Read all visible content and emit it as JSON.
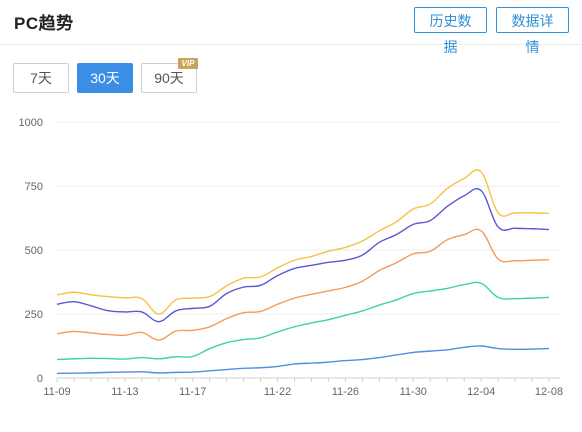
{
  "header": {
    "title": "PC趋势",
    "history_label": "历史数据",
    "detail_label": "数据详情"
  },
  "range_buttons": {
    "d7": "7天",
    "d30": "30天",
    "d90": "90天",
    "vip": "VIP",
    "selected": "30天"
  },
  "colors": {
    "accent": "#3a8ee6",
    "header_button": "#2f8fd8",
    "vip_badge": "#c9a35a"
  },
  "chart_data": {
    "type": "line",
    "x": [
      "11-09",
      "11-10",
      "11-11",
      "11-12",
      "11-13",
      "11-14",
      "11-15",
      "11-16",
      "11-17",
      "11-18",
      "11-19",
      "11-20",
      "11-21",
      "11-22",
      "11-23",
      "11-24",
      "11-25",
      "11-26",
      "11-27",
      "11-28",
      "11-29",
      "11-30",
      "12-01",
      "12-02",
      "12-03",
      "12-04",
      "12-05",
      "12-06",
      "12-07",
      "12-08"
    ],
    "x_tick_labels": [
      "11-09",
      "11-13",
      "11-17",
      "11-22",
      "11-26",
      "11-30",
      "12-04",
      "12-08"
    ],
    "ylim": [
      0,
      1000
    ],
    "y_ticks": [
      0,
      250,
      500,
      750,
      1000
    ],
    "grid": true,
    "series": [
      {
        "color": "#f5c242",
        "values": [
          325,
          335,
          325,
          318,
          313,
          310,
          250,
          305,
          312,
          318,
          360,
          390,
          395,
          430,
          460,
          475,
          495,
          510,
          535,
          575,
          610,
          660,
          680,
          740,
          780,
          805,
          645,
          645,
          645,
          643
        ]
      },
      {
        "color": "#5b56d2",
        "values": [
          288,
          298,
          282,
          263,
          258,
          258,
          220,
          262,
          272,
          280,
          330,
          355,
          362,
          400,
          428,
          440,
          452,
          460,
          480,
          530,
          560,
          600,
          615,
          670,
          712,
          732,
          590,
          585,
          583,
          580
        ]
      },
      {
        "color": "#f59b5c",
        "values": [
          173,
          182,
          176,
          170,
          167,
          178,
          148,
          183,
          186,
          200,
          232,
          255,
          260,
          288,
          312,
          327,
          340,
          354,
          378,
          420,
          450,
          485,
          495,
          540,
          560,
          575,
          465,
          458,
          460,
          462
        ]
      },
      {
        "color": "#3fd1ad",
        "values": [
          72,
          75,
          77,
          76,
          74,
          80,
          75,
          83,
          84,
          115,
          138,
          150,
          157,
          180,
          200,
          215,
          228,
          245,
          262,
          285,
          305,
          330,
          340,
          350,
          365,
          370,
          315,
          310,
          312,
          315
        ]
      },
      {
        "color": "#4f8fe0",
        "values": [
          18,
          19,
          20,
          22,
          23,
          24,
          20,
          22,
          23,
          28,
          33,
          38,
          40,
          45,
          55,
          58,
          62,
          68,
          72,
          80,
          90,
          100,
          105,
          110,
          120,
          125,
          115,
          112,
          113,
          115
        ]
      }
    ]
  }
}
